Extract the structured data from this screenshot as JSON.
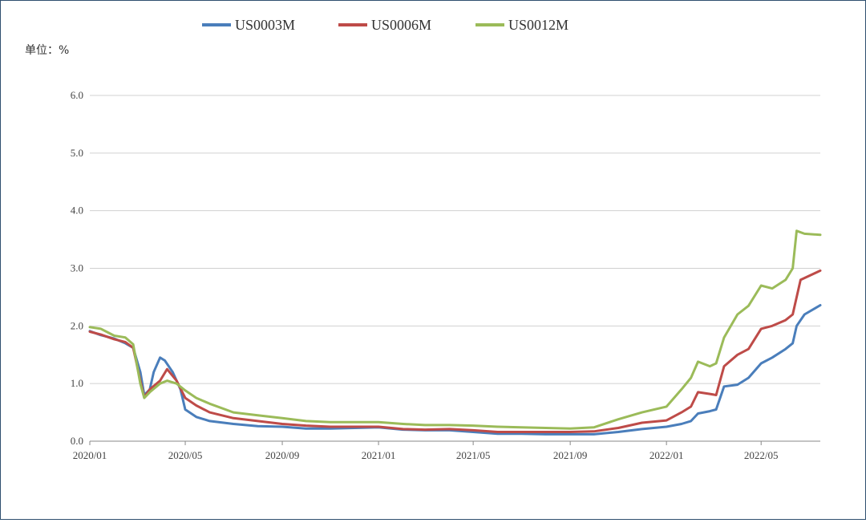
{
  "chart_data": {
    "type": "line",
    "unit_label": "单位：%",
    "ylim": [
      0,
      6
    ],
    "yticks": [
      "0.0",
      "1.0",
      "2.0",
      "3.0",
      "4.0",
      "5.0",
      "6.0"
    ],
    "xlim": [
      "2020-01-01",
      "2022-07-15"
    ],
    "xticks": [
      {
        "date": "2020-01-01",
        "label": "2020/01"
      },
      {
        "date": "2020-05-01",
        "label": "2020/05"
      },
      {
        "date": "2020-09-01",
        "label": "2020/09"
      },
      {
        "date": "2021-01-01",
        "label": "2021/01"
      },
      {
        "date": "2021-05-01",
        "label": "2021/05"
      },
      {
        "date": "2021-09-01",
        "label": "2021/09"
      },
      {
        "date": "2022-01-01",
        "label": "2022/01"
      },
      {
        "date": "2022-05-01",
        "label": "2022/05"
      }
    ],
    "grid": "horizontal",
    "legend_position": "top",
    "series": [
      {
        "name": "US0003M",
        "color": "#4a7ebb",
        "points": [
          [
            "2020-01-01",
            1.91
          ],
          [
            "2020-01-15",
            1.84
          ],
          [
            "2020-02-01",
            1.78
          ],
          [
            "2020-02-15",
            1.7
          ],
          [
            "2020-02-25",
            1.62
          ],
          [
            "2020-03-05",
            1.2
          ],
          [
            "2020-03-10",
            0.8
          ],
          [
            "2020-03-17",
            0.9
          ],
          [
            "2020-03-22",
            1.2
          ],
          [
            "2020-03-30",
            1.45
          ],
          [
            "2020-04-05",
            1.4
          ],
          [
            "2020-04-15",
            1.2
          ],
          [
            "2020-04-25",
            0.9
          ],
          [
            "2020-05-01",
            0.55
          ],
          [
            "2020-05-15",
            0.42
          ],
          [
            "2020-06-01",
            0.35
          ],
          [
            "2020-07-01",
            0.3
          ],
          [
            "2020-08-01",
            0.26
          ],
          [
            "2020-09-01",
            0.25
          ],
          [
            "2020-10-01",
            0.22
          ],
          [
            "2020-11-01",
            0.22
          ],
          [
            "2020-12-01",
            0.23
          ],
          [
            "2021-01-01",
            0.24
          ],
          [
            "2021-02-01",
            0.2
          ],
          [
            "2021-03-01",
            0.19
          ],
          [
            "2021-04-01",
            0.19
          ],
          [
            "2021-05-01",
            0.16
          ],
          [
            "2021-06-01",
            0.13
          ],
          [
            "2021-07-01",
            0.13
          ],
          [
            "2021-08-01",
            0.12
          ],
          [
            "2021-09-01",
            0.12
          ],
          [
            "2021-10-01",
            0.12
          ],
          [
            "2021-11-01",
            0.16
          ],
          [
            "2021-12-01",
            0.21
          ],
          [
            "2022-01-01",
            0.25
          ],
          [
            "2022-01-20",
            0.3
          ],
          [
            "2022-02-01",
            0.35
          ],
          [
            "2022-02-10",
            0.48
          ],
          [
            "2022-02-25",
            0.52
          ],
          [
            "2022-03-05",
            0.55
          ],
          [
            "2022-03-15",
            0.95
          ],
          [
            "2022-04-01",
            0.98
          ],
          [
            "2022-04-15",
            1.1
          ],
          [
            "2022-05-01",
            1.35
          ],
          [
            "2022-05-15",
            1.45
          ],
          [
            "2022-06-01",
            1.6
          ],
          [
            "2022-06-10",
            1.7
          ],
          [
            "2022-06-15",
            2.0
          ],
          [
            "2022-06-25",
            2.2
          ],
          [
            "2022-07-15",
            2.36
          ]
        ]
      },
      {
        "name": "US0006M",
        "color": "#be4b48",
        "points": [
          [
            "2020-01-01",
            1.9
          ],
          [
            "2020-01-15",
            1.85
          ],
          [
            "2020-02-01",
            1.77
          ],
          [
            "2020-02-15",
            1.72
          ],
          [
            "2020-02-25",
            1.62
          ],
          [
            "2020-03-05",
            1.05
          ],
          [
            "2020-03-10",
            0.76
          ],
          [
            "2020-03-17",
            0.9
          ],
          [
            "2020-03-30",
            1.05
          ],
          [
            "2020-04-08",
            1.25
          ],
          [
            "2020-04-20",
            1.05
          ],
          [
            "2020-05-01",
            0.75
          ],
          [
            "2020-05-15",
            0.62
          ],
          [
            "2020-06-01",
            0.5
          ],
          [
            "2020-07-01",
            0.4
          ],
          [
            "2020-08-01",
            0.35
          ],
          [
            "2020-09-01",
            0.3
          ],
          [
            "2020-10-01",
            0.27
          ],
          [
            "2020-11-01",
            0.25
          ],
          [
            "2020-12-01",
            0.25
          ],
          [
            "2021-01-01",
            0.25
          ],
          [
            "2021-02-01",
            0.21
          ],
          [
            "2021-03-01",
            0.2
          ],
          [
            "2021-04-01",
            0.21
          ],
          [
            "2021-05-01",
            0.19
          ],
          [
            "2021-06-01",
            0.16
          ],
          [
            "2021-07-01",
            0.16
          ],
          [
            "2021-08-01",
            0.16
          ],
          [
            "2021-09-01",
            0.16
          ],
          [
            "2021-10-01",
            0.17
          ],
          [
            "2021-11-01",
            0.23
          ],
          [
            "2021-12-01",
            0.32
          ],
          [
            "2022-01-01",
            0.36
          ],
          [
            "2022-01-20",
            0.5
          ],
          [
            "2022-02-01",
            0.6
          ],
          [
            "2022-02-10",
            0.85
          ],
          [
            "2022-02-25",
            0.82
          ],
          [
            "2022-03-05",
            0.8
          ],
          [
            "2022-03-15",
            1.3
          ],
          [
            "2022-04-01",
            1.5
          ],
          [
            "2022-04-15",
            1.6
          ],
          [
            "2022-05-01",
            1.95
          ],
          [
            "2022-05-15",
            2.0
          ],
          [
            "2022-06-01",
            2.1
          ],
          [
            "2022-06-10",
            2.2
          ],
          [
            "2022-06-15",
            2.5
          ],
          [
            "2022-06-20",
            2.8
          ],
          [
            "2022-07-15",
            2.96
          ]
        ]
      },
      {
        "name": "US0012M",
        "color": "#9bbb59",
        "points": [
          [
            "2020-01-01",
            1.98
          ],
          [
            "2020-01-15",
            1.95
          ],
          [
            "2020-02-01",
            1.83
          ],
          [
            "2020-02-15",
            1.8
          ],
          [
            "2020-02-25",
            1.68
          ],
          [
            "2020-03-05",
            1.0
          ],
          [
            "2020-03-10",
            0.75
          ],
          [
            "2020-03-17",
            0.85
          ],
          [
            "2020-03-30",
            1.0
          ],
          [
            "2020-04-08",
            1.05
          ],
          [
            "2020-04-20",
            1.0
          ],
          [
            "2020-05-01",
            0.88
          ],
          [
            "2020-05-15",
            0.75
          ],
          [
            "2020-06-01",
            0.65
          ],
          [
            "2020-07-01",
            0.5
          ],
          [
            "2020-08-01",
            0.45
          ],
          [
            "2020-09-01",
            0.4
          ],
          [
            "2020-10-01",
            0.35
          ],
          [
            "2020-11-01",
            0.33
          ],
          [
            "2020-12-01",
            0.33
          ],
          [
            "2021-01-01",
            0.33
          ],
          [
            "2021-02-01",
            0.3
          ],
          [
            "2021-03-01",
            0.28
          ],
          [
            "2021-04-01",
            0.28
          ],
          [
            "2021-05-01",
            0.27
          ],
          [
            "2021-06-01",
            0.25
          ],
          [
            "2021-07-01",
            0.24
          ],
          [
            "2021-08-01",
            0.23
          ],
          [
            "2021-09-01",
            0.22
          ],
          [
            "2021-10-01",
            0.24
          ],
          [
            "2021-11-01",
            0.38
          ],
          [
            "2021-12-01",
            0.5
          ],
          [
            "2022-01-01",
            0.6
          ],
          [
            "2022-01-20",
            0.9
          ],
          [
            "2022-02-01",
            1.1
          ],
          [
            "2022-02-10",
            1.38
          ],
          [
            "2022-02-25",
            1.3
          ],
          [
            "2022-03-05",
            1.35
          ],
          [
            "2022-03-15",
            1.8
          ],
          [
            "2022-04-01",
            2.2
          ],
          [
            "2022-04-15",
            2.35
          ],
          [
            "2022-05-01",
            2.7
          ],
          [
            "2022-05-15",
            2.65
          ],
          [
            "2022-06-01",
            2.8
          ],
          [
            "2022-06-10",
            3.0
          ],
          [
            "2022-06-15",
            3.65
          ],
          [
            "2022-06-25",
            3.6
          ],
          [
            "2022-07-15",
            3.58
          ]
        ]
      }
    ]
  }
}
